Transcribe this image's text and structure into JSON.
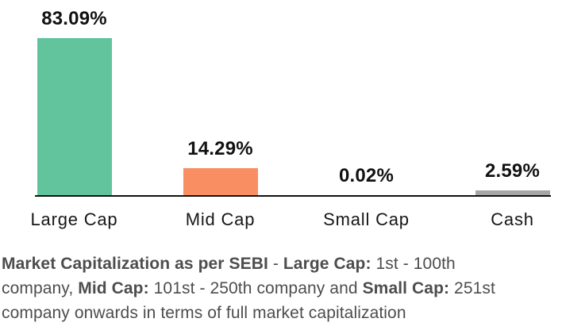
{
  "chart_data": {
    "type": "bar",
    "categories": [
      "Large Cap",
      "Mid Cap",
      "Small Cap",
      "Cash"
    ],
    "values": [
      83.09,
      14.29,
      0.02,
      2.59
    ],
    "data_labels": [
      "83.09%",
      "14.29%",
      "0.02%",
      "2.59%"
    ],
    "bar_colors": [
      "#62c49d",
      "#f98e62",
      "#a6a6a6",
      "#a6a6a6"
    ],
    "title": "",
    "xlabel": "",
    "ylabel": "",
    "ylim": [
      0,
      90
    ],
    "grid": false,
    "y_axis_visible": false,
    "legend": "none",
    "axis_line_color": "#111111",
    "label_color": "#111111"
  },
  "footnote": {
    "color": "#4d4d4d",
    "lines": [
      [
        {
          "text": "Market Capitalization as per SEBI",
          "bold": true
        },
        {
          "text": " - ",
          "bold": false
        },
        {
          "text": "Large Cap:",
          "bold": true
        },
        {
          "text": " 1st - 100th",
          "bold": false
        }
      ],
      [
        {
          "text": "company, ",
          "bold": false
        },
        {
          "text": "Mid Cap:",
          "bold": true
        },
        {
          "text": " 101st - 250th company and ",
          "bold": false
        },
        {
          "text": "Small Cap:",
          "bold": true
        },
        {
          "text": " 251st",
          "bold": false
        }
      ],
      [
        {
          "text": "company onwards in terms of full market capitalization",
          "bold": false
        }
      ]
    ]
  }
}
